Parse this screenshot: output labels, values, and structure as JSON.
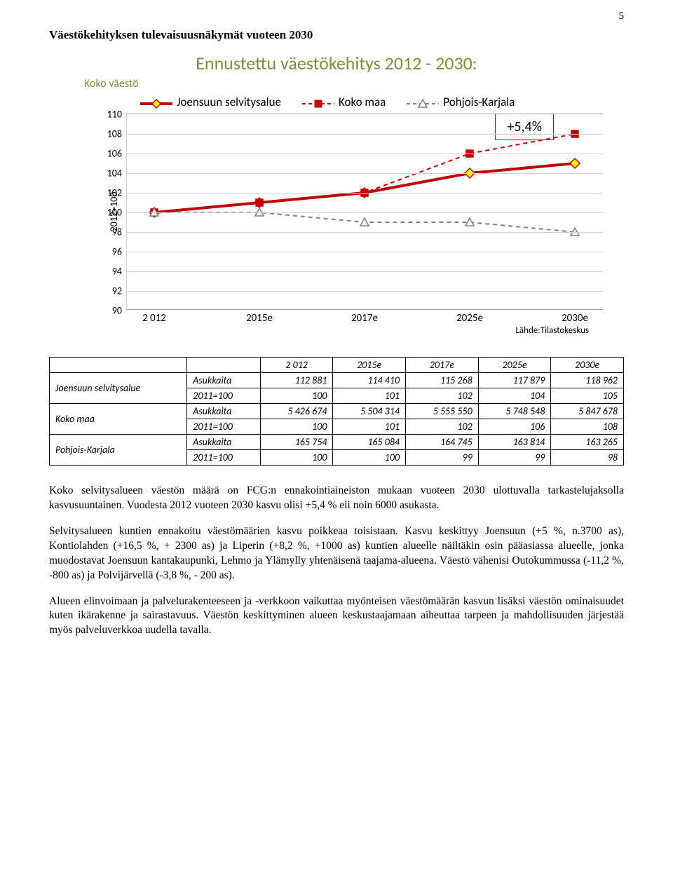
{
  "page_number": "5",
  "section_title": "Väestökehityksen tulevaisuusnäkymät vuoteen 2030",
  "chart": {
    "type": "line",
    "title": "Ennustettu väestökehitys 2012 - 2030:",
    "subtitle": "Koko väestö",
    "badge": "+5,4%",
    "y_axis_label": "2012=100",
    "ylim_min": 90,
    "ylim_max": 110,
    "ytick_step": 2,
    "x_categories": [
      "2 012",
      "2015e",
      "2017e",
      "2025e",
      "2030e"
    ],
    "grid_color": "#d0d0d0",
    "background_color": "#ffffff",
    "series": [
      {
        "name": "Joensuun selvitysalue",
        "color": "#c00000",
        "dash": "solid",
        "line_width": 4,
        "marker": "diamond",
        "marker_color": "#ffff00",
        "marker_border": "#c00000",
        "values": [
          100,
          101,
          102,
          104,
          105
        ]
      },
      {
        "name": "Koko maa",
        "color": "#c00000",
        "dash": "dash",
        "line_width": 2,
        "marker": "square",
        "marker_color": "#c00000",
        "marker_border": "#c00000",
        "values": [
          100,
          101,
          102,
          106,
          108
        ]
      },
      {
        "name": "Pohjois-Karjala",
        "color": "#808080",
        "dash": "dash",
        "line_width": 2,
        "marker": "triangle",
        "marker_color": "#ffffff",
        "marker_border": "#808080",
        "values": [
          100,
          100,
          99,
          99,
          98
        ]
      }
    ],
    "source": "Lähde:Tilastokeskus"
  },
  "table": {
    "columns": [
      "",
      "",
      "2 012",
      "2015e",
      "2017e",
      "2025e",
      "2030e"
    ],
    "groups": [
      {
        "label": "Joensuun selvitysalue",
        "rows": [
          {
            "sub": "Asukkaita",
            "vals": [
              "112 881",
              "114 410",
              "115 268",
              "117 879",
              "118 962"
            ]
          },
          {
            "sub": "2011=100",
            "vals": [
              "100",
              "101",
              "102",
              "104",
              "105"
            ]
          }
        ]
      },
      {
        "label": "Koko maa",
        "rows": [
          {
            "sub": "Asukkaita",
            "vals": [
              "5 426 674",
              "5 504 314",
              "5 555 550",
              "5 748 548",
              "5 847 678"
            ]
          },
          {
            "sub": "2011=100",
            "vals": [
              "100",
              "101",
              "102",
              "106",
              "108"
            ]
          }
        ]
      },
      {
        "label": "Pohjois-Karjala",
        "rows": [
          {
            "sub": "Asukkaita",
            "vals": [
              "165 754",
              "165 084",
              "164 745",
              "163 814",
              "163 265"
            ]
          },
          {
            "sub": "2011=100",
            "vals": [
              "100",
              "100",
              "99",
              "99",
              "98"
            ]
          }
        ]
      }
    ]
  },
  "paragraphs": [
    "Koko selvitysalueen väestön määrä on FCG:n ennakointiaineiston mukaan vuoteen 2030 ulottuvalla tarkastelujaksolla kasvusuuntainen. Vuodesta 2012 vuoteen 2030 kasvu olisi +5,4 % eli noin 6000 asukasta.",
    "Selvitysalueen kuntien ennakoitu väestömäärien kasvu poikkeaa toisistaan. Kasvu keskittyy Joensuun (+5 %, n.3700 as), Kontiolahden (+16,5 %, + 2300 as) ja Liperin (+8,2 %, +1000 as) kuntien alueelle näiltäkin osin pääasiassa alueelle, jonka muodostavat Joensuun kantakaupunki, Lehmo ja Ylämylly yhtenäisenä taajama-alueena. Väestö vähenisi Outokummussa (-11,2 %, -800 as) ja Polvijärvellä (-3,8 %, - 200 as).",
    "Alueen elinvoimaan ja palvelurakenteeseen ja -verkkoon vaikuttaa myönteisen väestömäärän kasvun lisäksi väestön ominaisuudet kuten ikärakenne ja sairastavuus. Väestön keskittyminen alueen keskustaajamaan aiheuttaa tarpeen ja mahdollisuuden järjestää myös palveluverkkoa uudella tavalla."
  ]
}
